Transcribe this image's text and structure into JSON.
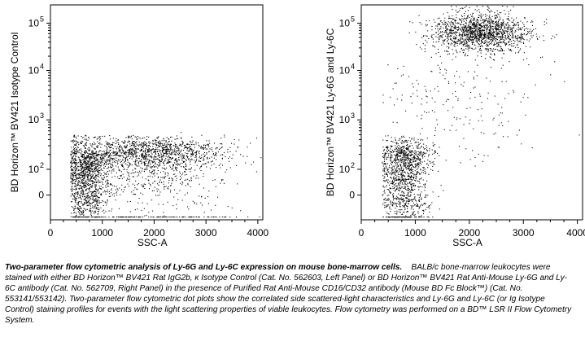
{
  "chart_data": [
    {
      "type": "scatter",
      "panel": "left",
      "title": "",
      "xlabel": "SSC-A",
      "ylabel": "BD Horizon™ BV421 Isotype Control",
      "xlim": [
        0,
        4096
      ],
      "x_scale": "linear",
      "y_scale": "biexponential",
      "x_ticks": [
        "0",
        "1000",
        "2000",
        "3000",
        "4000"
      ],
      "y_ticks": [
        "0",
        "10",
        "10",
        "10",
        "10"
      ],
      "y_tick_exponents": [
        "",
        "2",
        "3",
        "4",
        "5"
      ],
      "populations": [
        {
          "label": "",
          "x_center": 700,
          "x_spread": 200,
          "y_center": 60,
          "y_spread": 90,
          "count": 1100
        },
        {
          "label": "",
          "x_center": 1900,
          "x_spread": 750,
          "y_center": 180,
          "y_spread": 110,
          "count": 1700
        },
        {
          "label": "",
          "x_center": 2000,
          "x_spread": 900,
          "y_center": 0,
          "y_spread": 0,
          "count": 120
        }
      ]
    },
    {
      "type": "scatter",
      "panel": "right",
      "title": "",
      "xlabel": "SSC-A",
      "ylabel": "BD Horizon™ BV421 Ly-6G and Ly-6C",
      "xlim": [
        0,
        4096
      ],
      "x_scale": "linear",
      "y_scale": "biexponential",
      "x_ticks": [
        "0",
        "1000",
        "2000",
        "3000",
        "4000"
      ],
      "y_ticks": [
        "0",
        "10",
        "10",
        "10",
        "10"
      ],
      "y_tick_exponents": [
        "",
        "2",
        "3",
        "4",
        "5"
      ],
      "populations": [
        {
          "label": "",
          "x_center": 800,
          "x_spread": 220,
          "y_center": 80,
          "y_spread": 120,
          "count": 1300
        },
        {
          "label": "",
          "x_center": 2200,
          "x_spread": 450,
          "y_center": 65000,
          "y_spread": 0.35,
          "count": 1500
        },
        {
          "label": "",
          "x_center": 1800,
          "x_spread": 700,
          "y_center": 3000,
          "y_spread": 1.0,
          "count": 220
        }
      ]
    }
  ],
  "caption": {
    "title": "Two-parameter flow cytometric analysis of Ly-6G and Ly-6C expression on mouse bone-marrow cells.",
    "body": "BALB/c bone-marrow leukocytes were stained with either BD Horizon™ BV421 Rat IgG2b, κ Isotype Control (Cat. No. 562603, Left Panel) or BD Horizon™ BV421 Rat Anti-Mouse Ly-6G and Ly-6C antibody (Cat. No. 562709, Right Panel) in the presence of Purified Rat Anti-Mouse CD16/CD32 antibody (Mouse BD Fc Block™) (Cat. No. 553141/553142). Two-parameter flow cytometric dot plots show the correlated side scattered-light characteristics and Ly-6G and Ly-6C (or Ig Isotype Control) staining profiles for events with the light scattering properties of viable leukocytes. Flow cytometry was performed on a BD™ LSR II Flow Cytometry System."
  },
  "colors": {
    "dots": "#000000",
    "frame": "#000000",
    "background": "#ffffff"
  }
}
